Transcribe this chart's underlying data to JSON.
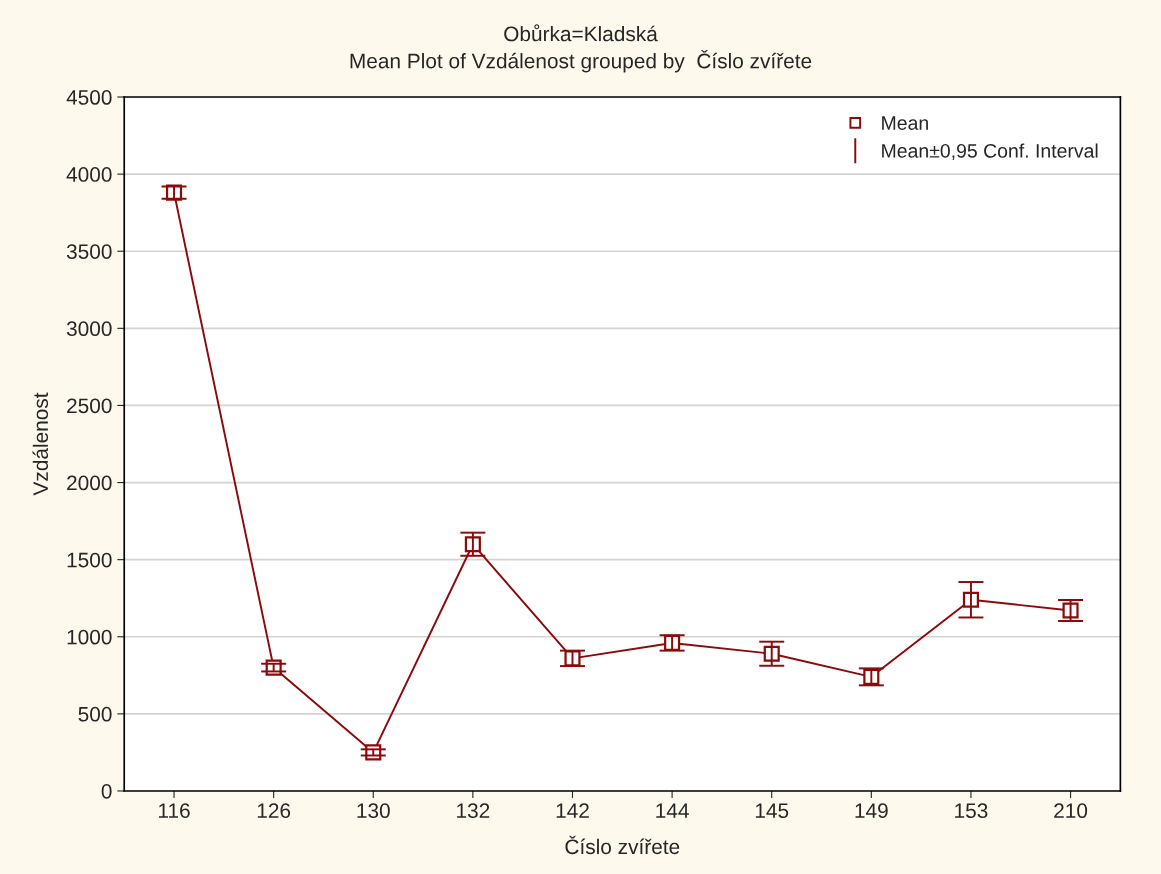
{
  "chart_data": {
    "type": "line",
    "title": "Obůrka=Kladská",
    "subtitle": "Mean Plot of Vzdálenost grouped by  Číslo zvířete",
    "xlabel": "Číslo zvířete",
    "ylabel": "Vzdálenost",
    "categories": [
      "116",
      "126",
      "130",
      "132",
      "142",
      "144",
      "145",
      "149",
      "153",
      "210"
    ],
    "series": [
      {
        "name": "Mean",
        "color": "#8b0a0a",
        "values": [
          3880,
          800,
          250,
          1600,
          860,
          960,
          890,
          740,
          1240,
          1170
        ],
        "errors": [
          40,
          25,
          20,
          75,
          50,
          50,
          78,
          55,
          115,
          68
        ]
      }
    ],
    "annotations": [
      "Mean±0,95 Conf. Interval"
    ],
    "ylim": [
      0,
      4500
    ],
    "yticks": [
      0,
      500,
      1000,
      1500,
      2000,
      2500,
      3000,
      3500,
      4000,
      4500
    ],
    "grid": "y",
    "legend": "top right",
    "marker": "square",
    "line_style": "solid"
  }
}
